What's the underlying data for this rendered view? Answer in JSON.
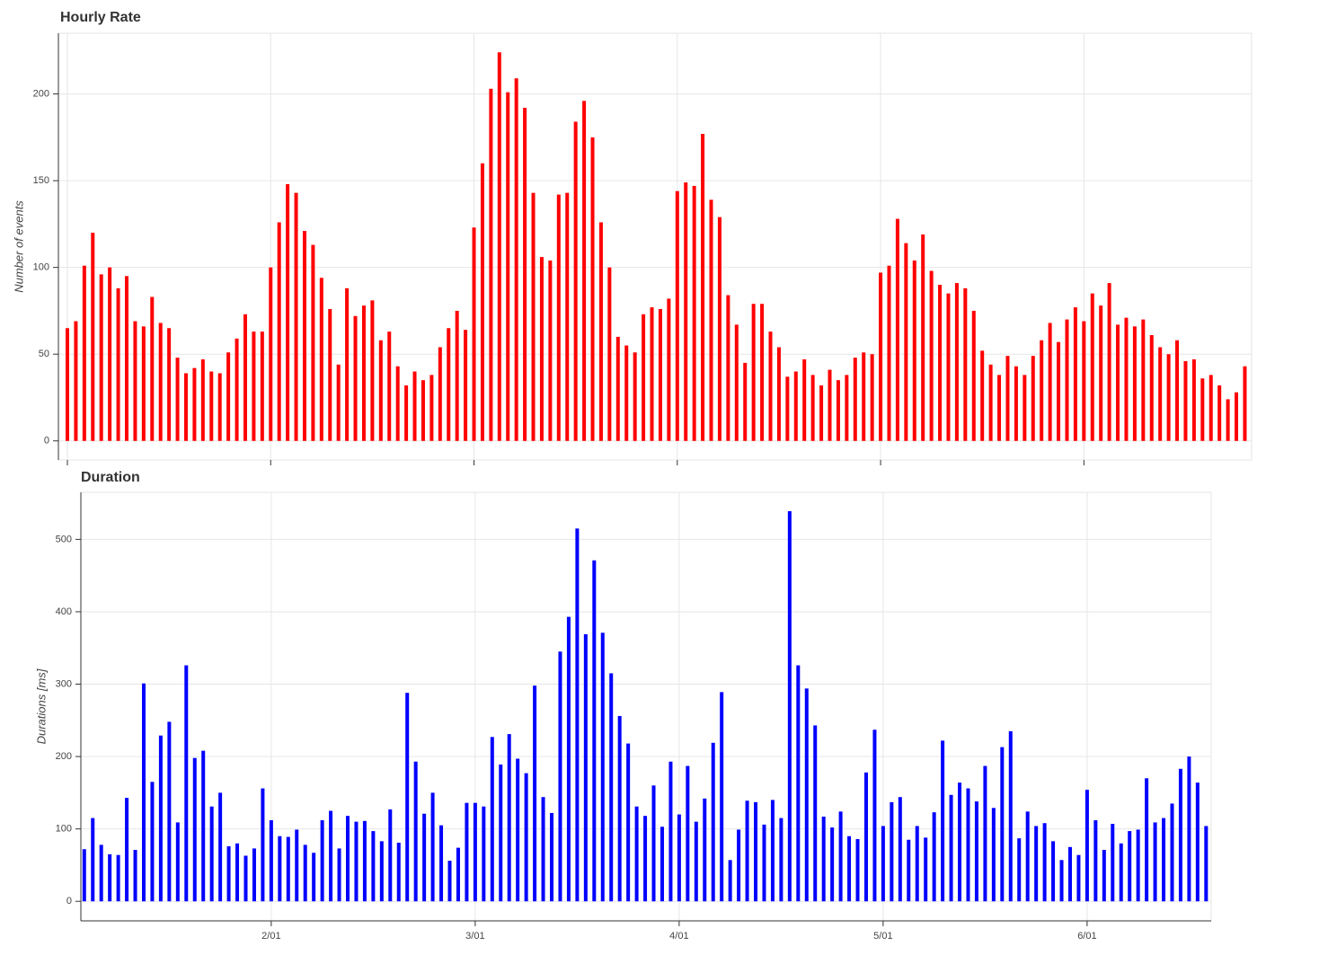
{
  "chart_data": [
    {
      "type": "bar",
      "title": "Hourly Rate",
      "y_label": "Number of events",
      "color": "#ff0000",
      "grid": true,
      "x": [
        0,
        1,
        2,
        3,
        4,
        5,
        6,
        7,
        8,
        9,
        10,
        11,
        12,
        13,
        14,
        15,
        16,
        17,
        18,
        19,
        20,
        21,
        22,
        23,
        24,
        25,
        26,
        27,
        28,
        29,
        30,
        31,
        32,
        33,
        34,
        35,
        36,
        37,
        38,
        39,
        40,
        41,
        42,
        43,
        44,
        45,
        46,
        47,
        48,
        49,
        50,
        51,
        52,
        53,
        54,
        55,
        56,
        57,
        58,
        59,
        60,
        61,
        62,
        63,
        64,
        65,
        66,
        67,
        68,
        69,
        70,
        71,
        72,
        73,
        74,
        75,
        76,
        77,
        78,
        79,
        80,
        81,
        82,
        83,
        84,
        85,
        86,
        87,
        88,
        89,
        90,
        91,
        92,
        93,
        94,
        95,
        96,
        97,
        98,
        99,
        100,
        101,
        102,
        103,
        104,
        105,
        106,
        107,
        108,
        109,
        110,
        111,
        112,
        113,
        114,
        115,
        116,
        117,
        118,
        119,
        120,
        121,
        122,
        123,
        124,
        125,
        126,
        127,
        128,
        129,
        130,
        131,
        132,
        133,
        134,
        135,
        136,
        137,
        138,
        139
      ],
      "values": [
        65,
        69,
        101,
        120,
        96,
        100,
        88,
        95,
        69,
        66,
        83,
        68,
        65,
        48,
        39,
        42,
        47,
        40,
        39,
        51,
        59,
        73,
        63,
        63,
        100,
        126,
        148,
        143,
        121,
        113,
        94,
        76,
        44,
        88,
        72,
        78,
        81,
        58,
        63,
        43,
        32,
        40,
        35,
        38,
        54,
        65,
        75,
        64,
        123,
        160,
        203,
        224,
        201,
        209,
        192,
        143,
        106,
        104,
        142,
        143,
        184,
        196,
        175,
        126,
        100,
        60,
        55,
        51,
        73,
        77,
        76,
        82,
        144,
        149,
        147,
        177,
        139,
        129,
        84,
        67,
        45,
        79,
        79,
        63,
        54,
        37,
        40,
        47,
        38,
        32,
        41,
        35,
        38,
        48,
        51,
        50,
        97,
        101,
        128,
        114,
        104,
        119,
        98,
        90,
        85,
        91,
        88,
        75,
        52,
        44,
        38,
        49,
        43,
        38,
        49,
        58,
        68,
        57,
        70,
        77,
        69,
        85,
        78,
        91,
        67,
        71,
        66,
        70,
        61,
        54,
        50,
        58,
        46,
        47,
        36,
        38,
        32,
        24,
        28,
        43
      ],
      "xlim": [
        -1.06,
        139.8
      ],
      "xticks": [
        0,
        24,
        48,
        72,
        96,
        120
      ],
      "ylim": [
        -11,
        235
      ],
      "yticks": [
        0,
        50,
        100,
        150,
        200
      ]
    },
    {
      "type": "bar",
      "title": "Duration",
      "y_label": "Durations [ms]",
      "color": "#0000ff",
      "grid": true,
      "x": [
        2,
        3,
        4,
        5,
        6,
        7,
        8,
        9,
        10,
        11,
        12,
        13,
        14,
        15,
        16,
        17,
        18,
        19,
        20,
        21,
        22,
        23,
        24,
        25,
        26,
        27,
        28,
        29,
        30,
        31,
        32,
        33,
        34,
        35,
        36,
        37,
        38,
        39,
        40,
        41,
        42,
        43,
        44,
        45,
        46,
        47,
        48,
        49,
        50,
        51,
        52,
        53,
        54,
        55,
        56,
        57,
        58,
        59,
        60,
        61,
        62,
        63,
        64,
        65,
        66,
        67,
        68,
        69,
        70,
        71,
        72,
        73,
        74,
        75,
        76,
        77,
        78,
        79,
        80,
        81,
        82,
        83,
        84,
        85,
        86,
        87,
        88,
        89,
        90,
        91,
        92,
        93,
        94,
        95,
        96,
        97,
        98,
        99,
        100,
        101,
        102,
        103,
        104,
        105,
        106,
        107,
        108,
        109,
        110,
        111,
        112,
        113,
        114,
        115,
        116,
        117,
        118,
        119,
        120,
        121,
        122,
        123,
        124,
        125,
        126,
        127,
        128,
        129,
        130,
        131,
        132,
        133,
        134
      ],
      "values": [
        72,
        115,
        78,
        65,
        64,
        143,
        71,
        301,
        165,
        229,
        248,
        109,
        326,
        198,
        208,
        131,
        150,
        76,
        80,
        63,
        73,
        156,
        112,
        90,
        89,
        99,
        78,
        67,
        112,
        125,
        73,
        118,
        110,
        111,
        97,
        83,
        127,
        81,
        288,
        193,
        121,
        150,
        105,
        56,
        74,
        136,
        136,
        131,
        227,
        189,
        231,
        197,
        177,
        298,
        144,
        122,
        345,
        393,
        515,
        369,
        471,
        371,
        315,
        256,
        218,
        131,
        118,
        160,
        103,
        193,
        120,
        187,
        110,
        142,
        219,
        289,
        57,
        99,
        139,
        137,
        106,
        140,
        115,
        539,
        326,
        294,
        243,
        117,
        102,
        124,
        90,
        86,
        178,
        237,
        104,
        137,
        144,
        85,
        104,
        88,
        123,
        222,
        147,
        164,
        156,
        138,
        187,
        129,
        213,
        235,
        87,
        124,
        104,
        108,
        83,
        57,
        75,
        64,
        154,
        112,
        71,
        107,
        80,
        97,
        99,
        170,
        109,
        115,
        135,
        183,
        200,
        164,
        104
      ],
      "xlim": [
        1.6,
        134.6
      ],
      "xticks": [
        {
          "value": 24,
          "label": "2/01"
        },
        {
          "value": 48,
          "label": "3/01"
        },
        {
          "value": 72,
          "label": "4/01"
        },
        {
          "value": 96,
          "label": "5/01"
        },
        {
          "value": 120,
          "label": "6/01"
        }
      ],
      "ylim": [
        -27,
        565
      ],
      "yticks": [
        0,
        100,
        200,
        300,
        400,
        500
      ]
    }
  ]
}
